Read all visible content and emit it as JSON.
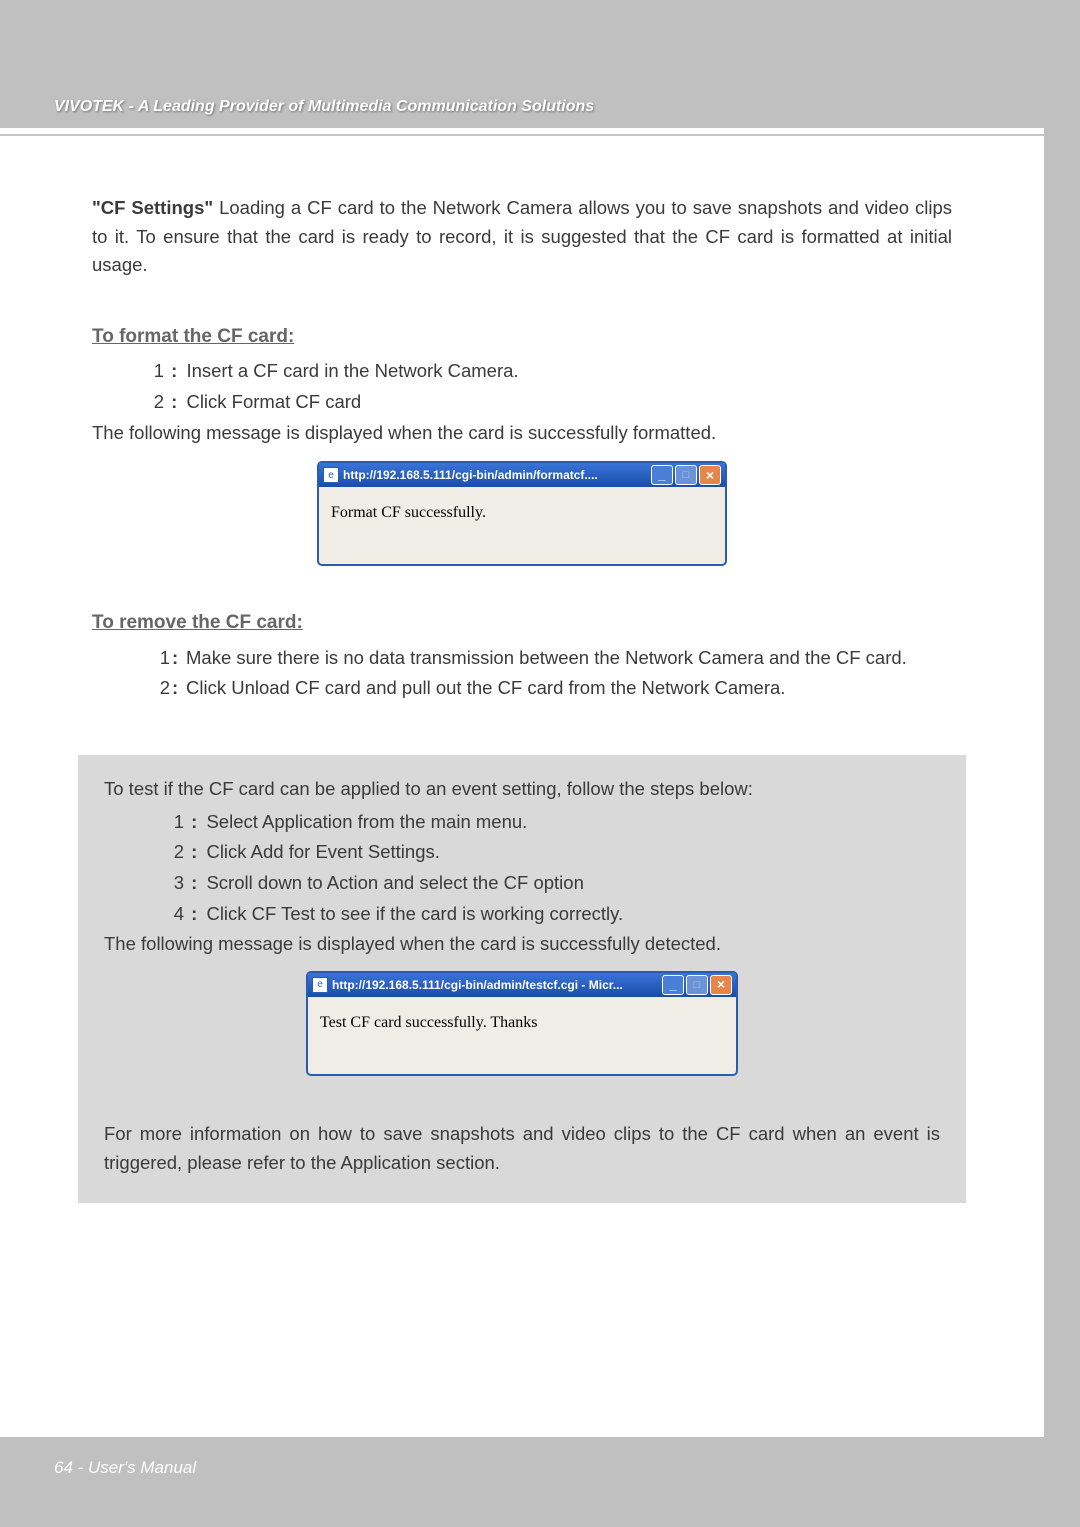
{
  "colors": {
    "page_bg": "#c0c0c0",
    "inner_bg": "#ffffff",
    "body_text": "#3a3a3a",
    "heading_text": "#666666",
    "header_footer_text": "#ffffff",
    "infobox_bg": "#d9d9d9",
    "dialog_border": "#2a5db0",
    "dialog_body_bg": "#f0ede6",
    "titlebar_grad_top": "#3a74d8",
    "titlebar_grad_bottom": "#1a4da8",
    "close_btn_bg": "#e8864a"
  },
  "header": {
    "text": "VIVOTEK - A Leading Provider of Multimedia Communication Solutions"
  },
  "intro": {
    "bold_prefix": "\"CF Settings\"",
    "rest": " Loading a CF card to the Network Camera allows you to save snapshots and video clips to it. To ensure that the card is ready to record, it is suggested that the CF card is formatted at initial usage."
  },
  "format": {
    "heading": "To format the CF card:",
    "steps": [
      "Insert a CF card in the Network Camera.",
      "Click Format CF card"
    ],
    "follow_msg": "The following message is displayed when the card is successfully formatted.",
    "dialog": {
      "title": "http://192.168.5.111/cgi-bin/admin/formatcf....",
      "body": "Format CF successfully."
    }
  },
  "remove": {
    "heading": "To remove the CF card:",
    "steps": [
      "Make sure there is no data transmission between the Network Camera and the CF card.",
      "Click Unload CF card and pull out the CF card from the Network Camera."
    ]
  },
  "infobox": {
    "lead": "To test if the CF card can be applied to an event setting, follow the steps below:",
    "steps": [
      "Select Application from the main menu.",
      "Click Add for Event Settings.",
      "Scroll down to Action and select the CF option",
      "Click CF Test to see if the card is working correctly."
    ],
    "follow_msg": "The following message is displayed when the card is successfully detected.",
    "dialog": {
      "title": "http://192.168.5.111/cgi-bin/admin/testcf.cgi - Micr...",
      "body": "Test CF card successfully. Thanks"
    },
    "more": "For more information on how to save snapshots and video clips to the CF card when an event is triggered, please refer to the Application section."
  },
  "footer": {
    "text": "64 - User's Manual"
  },
  "window_buttons": {
    "minimize": "_",
    "maximize": "□",
    "close": "×"
  }
}
